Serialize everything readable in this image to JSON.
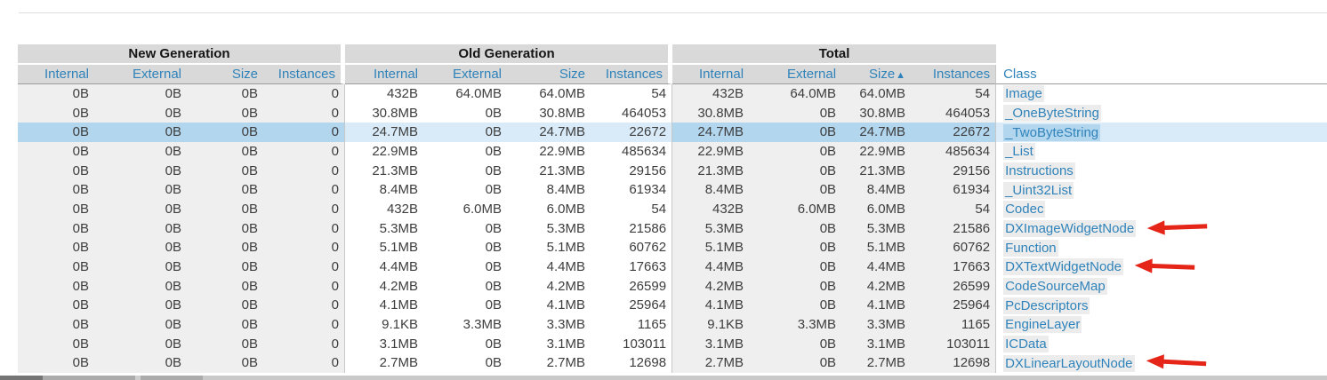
{
  "colors": {
    "header_text_blue": "#2f83ba",
    "class_link_blue": "#2f83ba",
    "header_bg_gray": "#d9d9d9",
    "group_shade_gray": "#efefef",
    "selected_row_on_white": "#d9ebf9",
    "selected_row_on_gray": "#b3d6ef",
    "class_link_highlight": "#ececec",
    "annotation_arrow_red": "#e42518",
    "value_text": "#3d3d3d"
  },
  "table": {
    "groups": [
      {
        "label": "New Generation",
        "columns": [
          "Internal",
          "External",
          "Size",
          "Instances"
        ]
      },
      {
        "label": "Old Generation",
        "columns": [
          "Internal",
          "External",
          "Size",
          "Instances"
        ]
      },
      {
        "label": "Total",
        "columns": [
          "Internal",
          "External",
          "Size",
          "Instances"
        ],
        "sorted_column": "Size"
      }
    ],
    "sort_indicator": "▲",
    "class_column_label": "Class",
    "rows": [
      {
        "class": "Image",
        "new_gen": [
          "0B",
          "0B",
          "0B",
          "0"
        ],
        "old_gen": [
          "432B",
          "64.0MB",
          "64.0MB",
          "54"
        ],
        "total": [
          "432B",
          "64.0MB",
          "64.0MB",
          "54"
        ],
        "selected": false,
        "arrow": false
      },
      {
        "class": "_OneByteString",
        "new_gen": [
          "0B",
          "0B",
          "0B",
          "0"
        ],
        "old_gen": [
          "30.8MB",
          "0B",
          "30.8MB",
          "464053"
        ],
        "total": [
          "30.8MB",
          "0B",
          "30.8MB",
          "464053"
        ],
        "selected": false,
        "arrow": false
      },
      {
        "class": "_TwoByteString",
        "new_gen": [
          "0B",
          "0B",
          "0B",
          "0"
        ],
        "old_gen": [
          "24.7MB",
          "0B",
          "24.7MB",
          "22672"
        ],
        "total": [
          "24.7MB",
          "0B",
          "24.7MB",
          "22672"
        ],
        "selected": true,
        "arrow": false
      },
      {
        "class": "_List",
        "new_gen": [
          "0B",
          "0B",
          "0B",
          "0"
        ],
        "old_gen": [
          "22.9MB",
          "0B",
          "22.9MB",
          "485634"
        ],
        "total": [
          "22.9MB",
          "0B",
          "22.9MB",
          "485634"
        ],
        "selected": false,
        "arrow": false
      },
      {
        "class": "Instructions",
        "new_gen": [
          "0B",
          "0B",
          "0B",
          "0"
        ],
        "old_gen": [
          "21.3MB",
          "0B",
          "21.3MB",
          "29156"
        ],
        "total": [
          "21.3MB",
          "0B",
          "21.3MB",
          "29156"
        ],
        "selected": false,
        "arrow": false
      },
      {
        "class": "_Uint32List",
        "new_gen": [
          "0B",
          "0B",
          "0B",
          "0"
        ],
        "old_gen": [
          "8.4MB",
          "0B",
          "8.4MB",
          "61934"
        ],
        "total": [
          "8.4MB",
          "0B",
          "8.4MB",
          "61934"
        ],
        "selected": false,
        "arrow": false
      },
      {
        "class": "Codec",
        "new_gen": [
          "0B",
          "0B",
          "0B",
          "0"
        ],
        "old_gen": [
          "432B",
          "6.0MB",
          "6.0MB",
          "54"
        ],
        "total": [
          "432B",
          "6.0MB",
          "6.0MB",
          "54"
        ],
        "selected": false,
        "arrow": false
      },
      {
        "class": "DXImageWidgetNode",
        "new_gen": [
          "0B",
          "0B",
          "0B",
          "0"
        ],
        "old_gen": [
          "5.3MB",
          "0B",
          "5.3MB",
          "21586"
        ],
        "total": [
          "5.3MB",
          "0B",
          "5.3MB",
          "21586"
        ],
        "selected": false,
        "arrow": true
      },
      {
        "class": "Function",
        "new_gen": [
          "0B",
          "0B",
          "0B",
          "0"
        ],
        "old_gen": [
          "5.1MB",
          "0B",
          "5.1MB",
          "60762"
        ],
        "total": [
          "5.1MB",
          "0B",
          "5.1MB",
          "60762"
        ],
        "selected": false,
        "arrow": false
      },
      {
        "class": "DXTextWidgetNode",
        "new_gen": [
          "0B",
          "0B",
          "0B",
          "0"
        ],
        "old_gen": [
          "4.4MB",
          "0B",
          "4.4MB",
          "17663"
        ],
        "total": [
          "4.4MB",
          "0B",
          "4.4MB",
          "17663"
        ],
        "selected": false,
        "arrow": true
      },
      {
        "class": "CodeSourceMap",
        "new_gen": [
          "0B",
          "0B",
          "0B",
          "0"
        ],
        "old_gen": [
          "4.2MB",
          "0B",
          "4.2MB",
          "26599"
        ],
        "total": [
          "4.2MB",
          "0B",
          "4.2MB",
          "26599"
        ],
        "selected": false,
        "arrow": false
      },
      {
        "class": "PcDescriptors",
        "new_gen": [
          "0B",
          "0B",
          "0B",
          "0"
        ],
        "old_gen": [
          "4.1MB",
          "0B",
          "4.1MB",
          "25964"
        ],
        "total": [
          "4.1MB",
          "0B",
          "4.1MB",
          "25964"
        ],
        "selected": false,
        "arrow": false
      },
      {
        "class": "EngineLayer",
        "new_gen": [
          "0B",
          "0B",
          "0B",
          "0"
        ],
        "old_gen": [
          "9.1KB",
          "3.3MB",
          "3.3MB",
          "1165"
        ],
        "total": [
          "9.1KB",
          "3.3MB",
          "3.3MB",
          "1165"
        ],
        "selected": false,
        "arrow": false
      },
      {
        "class": "ICData",
        "new_gen": [
          "0B",
          "0B",
          "0B",
          "0"
        ],
        "old_gen": [
          "3.1MB",
          "0B",
          "3.1MB",
          "103011"
        ],
        "total": [
          "3.1MB",
          "0B",
          "3.1MB",
          "103011"
        ],
        "selected": false,
        "arrow": false
      },
      {
        "class": "DXLinearLayoutNode",
        "new_gen": [
          "0B",
          "0B",
          "0B",
          "0"
        ],
        "old_gen": [
          "2.7MB",
          "0B",
          "2.7MB",
          "12698"
        ],
        "total": [
          "2.7MB",
          "0B",
          "2.7MB",
          "12698"
        ],
        "selected": false,
        "arrow": true
      }
    ]
  }
}
